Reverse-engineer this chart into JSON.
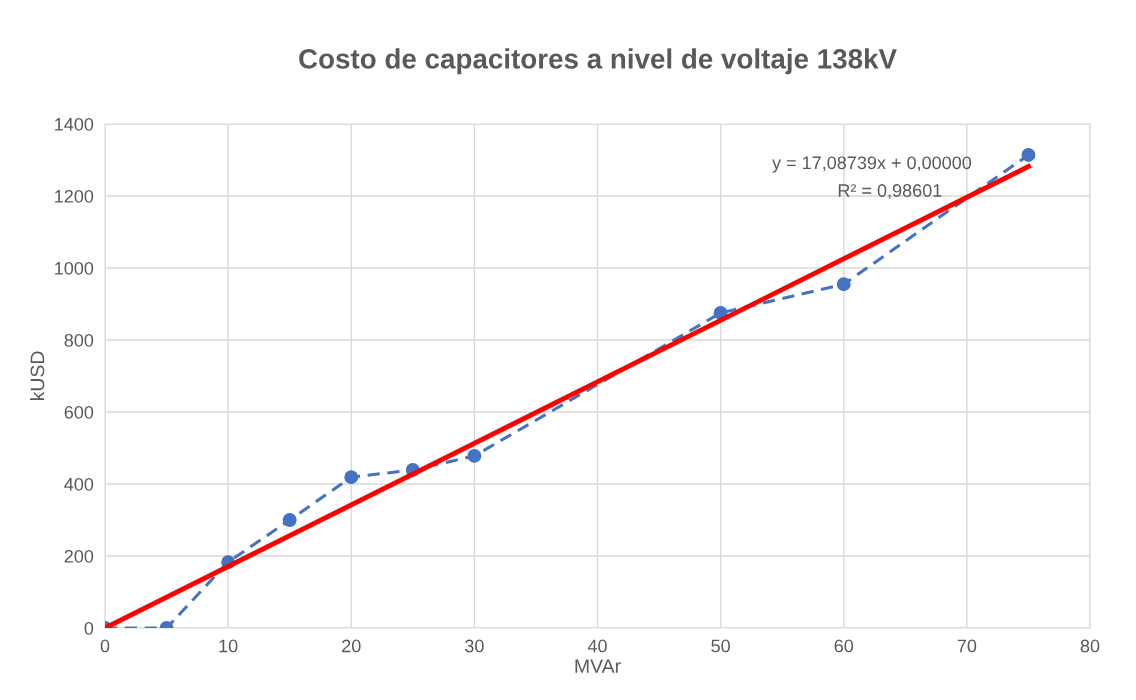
{
  "chart_data": {
    "type": "line",
    "title": "Costo de capacitores a nivel de voltaje 138kV",
    "xlabel": "MVAr",
    "ylabel": "kUSD",
    "series": [
      {
        "color": "#4472c4",
        "marker": "circle",
        "line_style": "dashed",
        "x": [
          0,
          5,
          10,
          15,
          20,
          25,
          30,
          50,
          60,
          75
        ],
        "values": [
          0,
          0,
          183,
          300,
          419,
          439,
          478,
          875,
          955,
          1314
        ]
      },
      {
        "color": "#ff0000",
        "marker": "none",
        "line_style": "solid",
        "x": [
          0,
          75
        ],
        "values": [
          0,
          1282
        ]
      }
    ],
    "annotations": [
      "y = 17,08739x + 0,00000",
      "R² = 0,98601"
    ],
    "xlim": [
      0,
      80
    ],
    "xticks": [
      0,
      10,
      20,
      30,
      40,
      50,
      60,
      70,
      80
    ],
    "ylim": [
      0,
      1400
    ],
    "yticks": [
      0,
      200,
      400,
      600,
      800,
      1000,
      1200,
      1400
    ],
    "grid": true
  }
}
